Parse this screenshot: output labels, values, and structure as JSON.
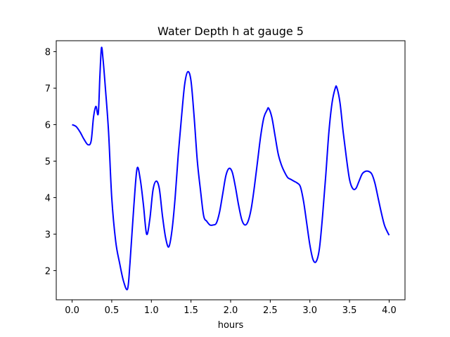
{
  "chart_data": {
    "type": "line",
    "title": "Water Depth h at gauge 5",
    "xlabel": "hours",
    "ylabel": "",
    "xlim": [
      -0.2,
      4.2
    ],
    "ylim": [
      1.2,
      8.3
    ],
    "grid": false,
    "xticks": [
      0.0,
      0.5,
      1.0,
      1.5,
      2.0,
      2.5,
      3.0,
      3.5,
      4.0
    ],
    "xtick_labels": [
      "0.0",
      "0.5",
      "1.0",
      "1.5",
      "2.0",
      "2.5",
      "3.0",
      "3.5",
      "4.0"
    ],
    "yticks": [
      2,
      3,
      4,
      5,
      6,
      7,
      8
    ],
    "ytick_labels": [
      "2",
      "3",
      "4",
      "5",
      "6",
      "7",
      "8"
    ],
    "series": [
      {
        "color": "#0000ff",
        "x": [
          0.0,
          0.05,
          0.1,
          0.15,
          0.2,
          0.24,
          0.27,
          0.3,
          0.33,
          0.35,
          0.37,
          0.39,
          0.42,
          0.46,
          0.5,
          0.55,
          0.6,
          0.65,
          0.7,
          0.73,
          0.78,
          0.82,
          0.86,
          0.9,
          0.94,
          0.98,
          1.02,
          1.06,
          1.1,
          1.14,
          1.18,
          1.22,
          1.26,
          1.3,
          1.34,
          1.38,
          1.42,
          1.46,
          1.5,
          1.54,
          1.58,
          1.62,
          1.66,
          1.7,
          1.74,
          1.78,
          1.82,
          1.86,
          1.9,
          1.94,
          1.98,
          2.02,
          2.06,
          2.1,
          2.14,
          2.18,
          2.22,
          2.26,
          2.3,
          2.34,
          2.38,
          2.42,
          2.46,
          2.48,
          2.52,
          2.56,
          2.6,
          2.64,
          2.68,
          2.72,
          2.76,
          2.8,
          2.84,
          2.88,
          2.92,
          2.96,
          3.0,
          3.04,
          3.08,
          3.12,
          3.16,
          3.2,
          3.24,
          3.28,
          3.32,
          3.34,
          3.38,
          3.42,
          3.46,
          3.5,
          3.54,
          3.58,
          3.62,
          3.66,
          3.7,
          3.74,
          3.78,
          3.82,
          3.86,
          3.9,
          3.94,
          3.98,
          4.0
        ],
        "y": [
          6.0,
          5.95,
          5.8,
          5.6,
          5.45,
          5.55,
          6.2,
          6.5,
          6.3,
          7.3,
          8.1,
          7.8,
          7.0,
          5.8,
          4.0,
          2.8,
          2.2,
          1.7,
          1.5,
          2.2,
          3.8,
          4.8,
          4.5,
          3.8,
          3.0,
          3.4,
          4.2,
          4.45,
          4.25,
          3.5,
          2.9,
          2.65,
          3.1,
          4.0,
          5.2,
          6.2,
          7.1,
          7.45,
          7.2,
          6.2,
          5.0,
          4.2,
          3.5,
          3.35,
          3.25,
          3.25,
          3.3,
          3.6,
          4.1,
          4.6,
          4.8,
          4.7,
          4.3,
          3.8,
          3.4,
          3.25,
          3.35,
          3.7,
          4.3,
          5.0,
          5.7,
          6.2,
          6.4,
          6.45,
          6.2,
          5.7,
          5.2,
          4.9,
          4.7,
          4.55,
          4.5,
          4.45,
          4.4,
          4.3,
          3.9,
          3.3,
          2.7,
          2.3,
          2.25,
          2.6,
          3.5,
          4.6,
          5.8,
          6.6,
          7.0,
          7.02,
          6.6,
          5.8,
          5.1,
          4.5,
          4.25,
          4.25,
          4.45,
          4.65,
          4.72,
          4.72,
          4.65,
          4.4,
          4.0,
          3.6,
          3.25,
          3.05,
          2.97
        ]
      }
    ]
  }
}
